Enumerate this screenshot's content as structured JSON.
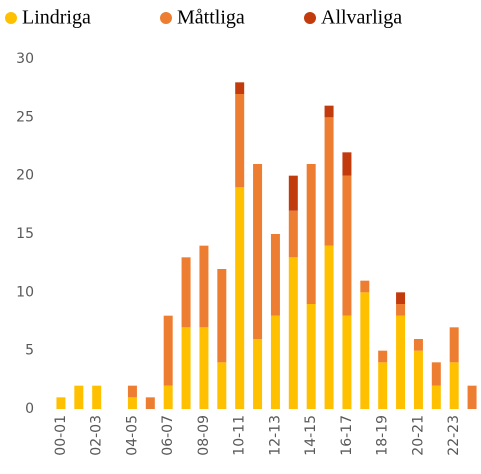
{
  "chart_data": {
    "type": "stacked_bar",
    "categories": [
      "00-01",
      null,
      "02-03",
      null,
      "04-05",
      null,
      "06-07",
      null,
      "08-09",
      null,
      "10-11",
      null,
      "12-13",
      null,
      "14-15",
      null,
      "16-17",
      null,
      "18-19",
      null,
      "20-21",
      null,
      "22-23",
      null
    ],
    "series": [
      {
        "name": "Lindriga",
        "color": "#ffc000",
        "values": [
          1,
          2,
          2,
          0,
          1,
          0,
          2,
          7,
          7,
          4,
          19,
          6,
          8,
          13,
          9,
          14,
          8,
          10,
          4,
          8,
          5,
          2,
          4,
          0
        ]
      },
      {
        "name": "Måttliga",
        "color": "#ed7d31",
        "values": [
          0,
          0,
          0,
          0,
          1,
          1,
          6,
          6,
          7,
          8,
          8,
          15,
          7,
          4,
          12,
          11,
          12,
          1,
          1,
          1,
          1,
          2,
          3,
          2
        ]
      },
      {
        "name": "Allvarliga",
        "color": "#c23b0d",
        "values": [
          0,
          0,
          0,
          0,
          0,
          0,
          0,
          0,
          0,
          0,
          1,
          0,
          0,
          3,
          0,
          1,
          2,
          0,
          0,
          1,
          0,
          0,
          0,
          0
        ]
      }
    ],
    "ylim": [
      0,
      30
    ],
    "yticks": [
      0,
      5,
      10,
      15,
      20,
      25,
      30
    ],
    "grid": false,
    "legend": "top"
  }
}
